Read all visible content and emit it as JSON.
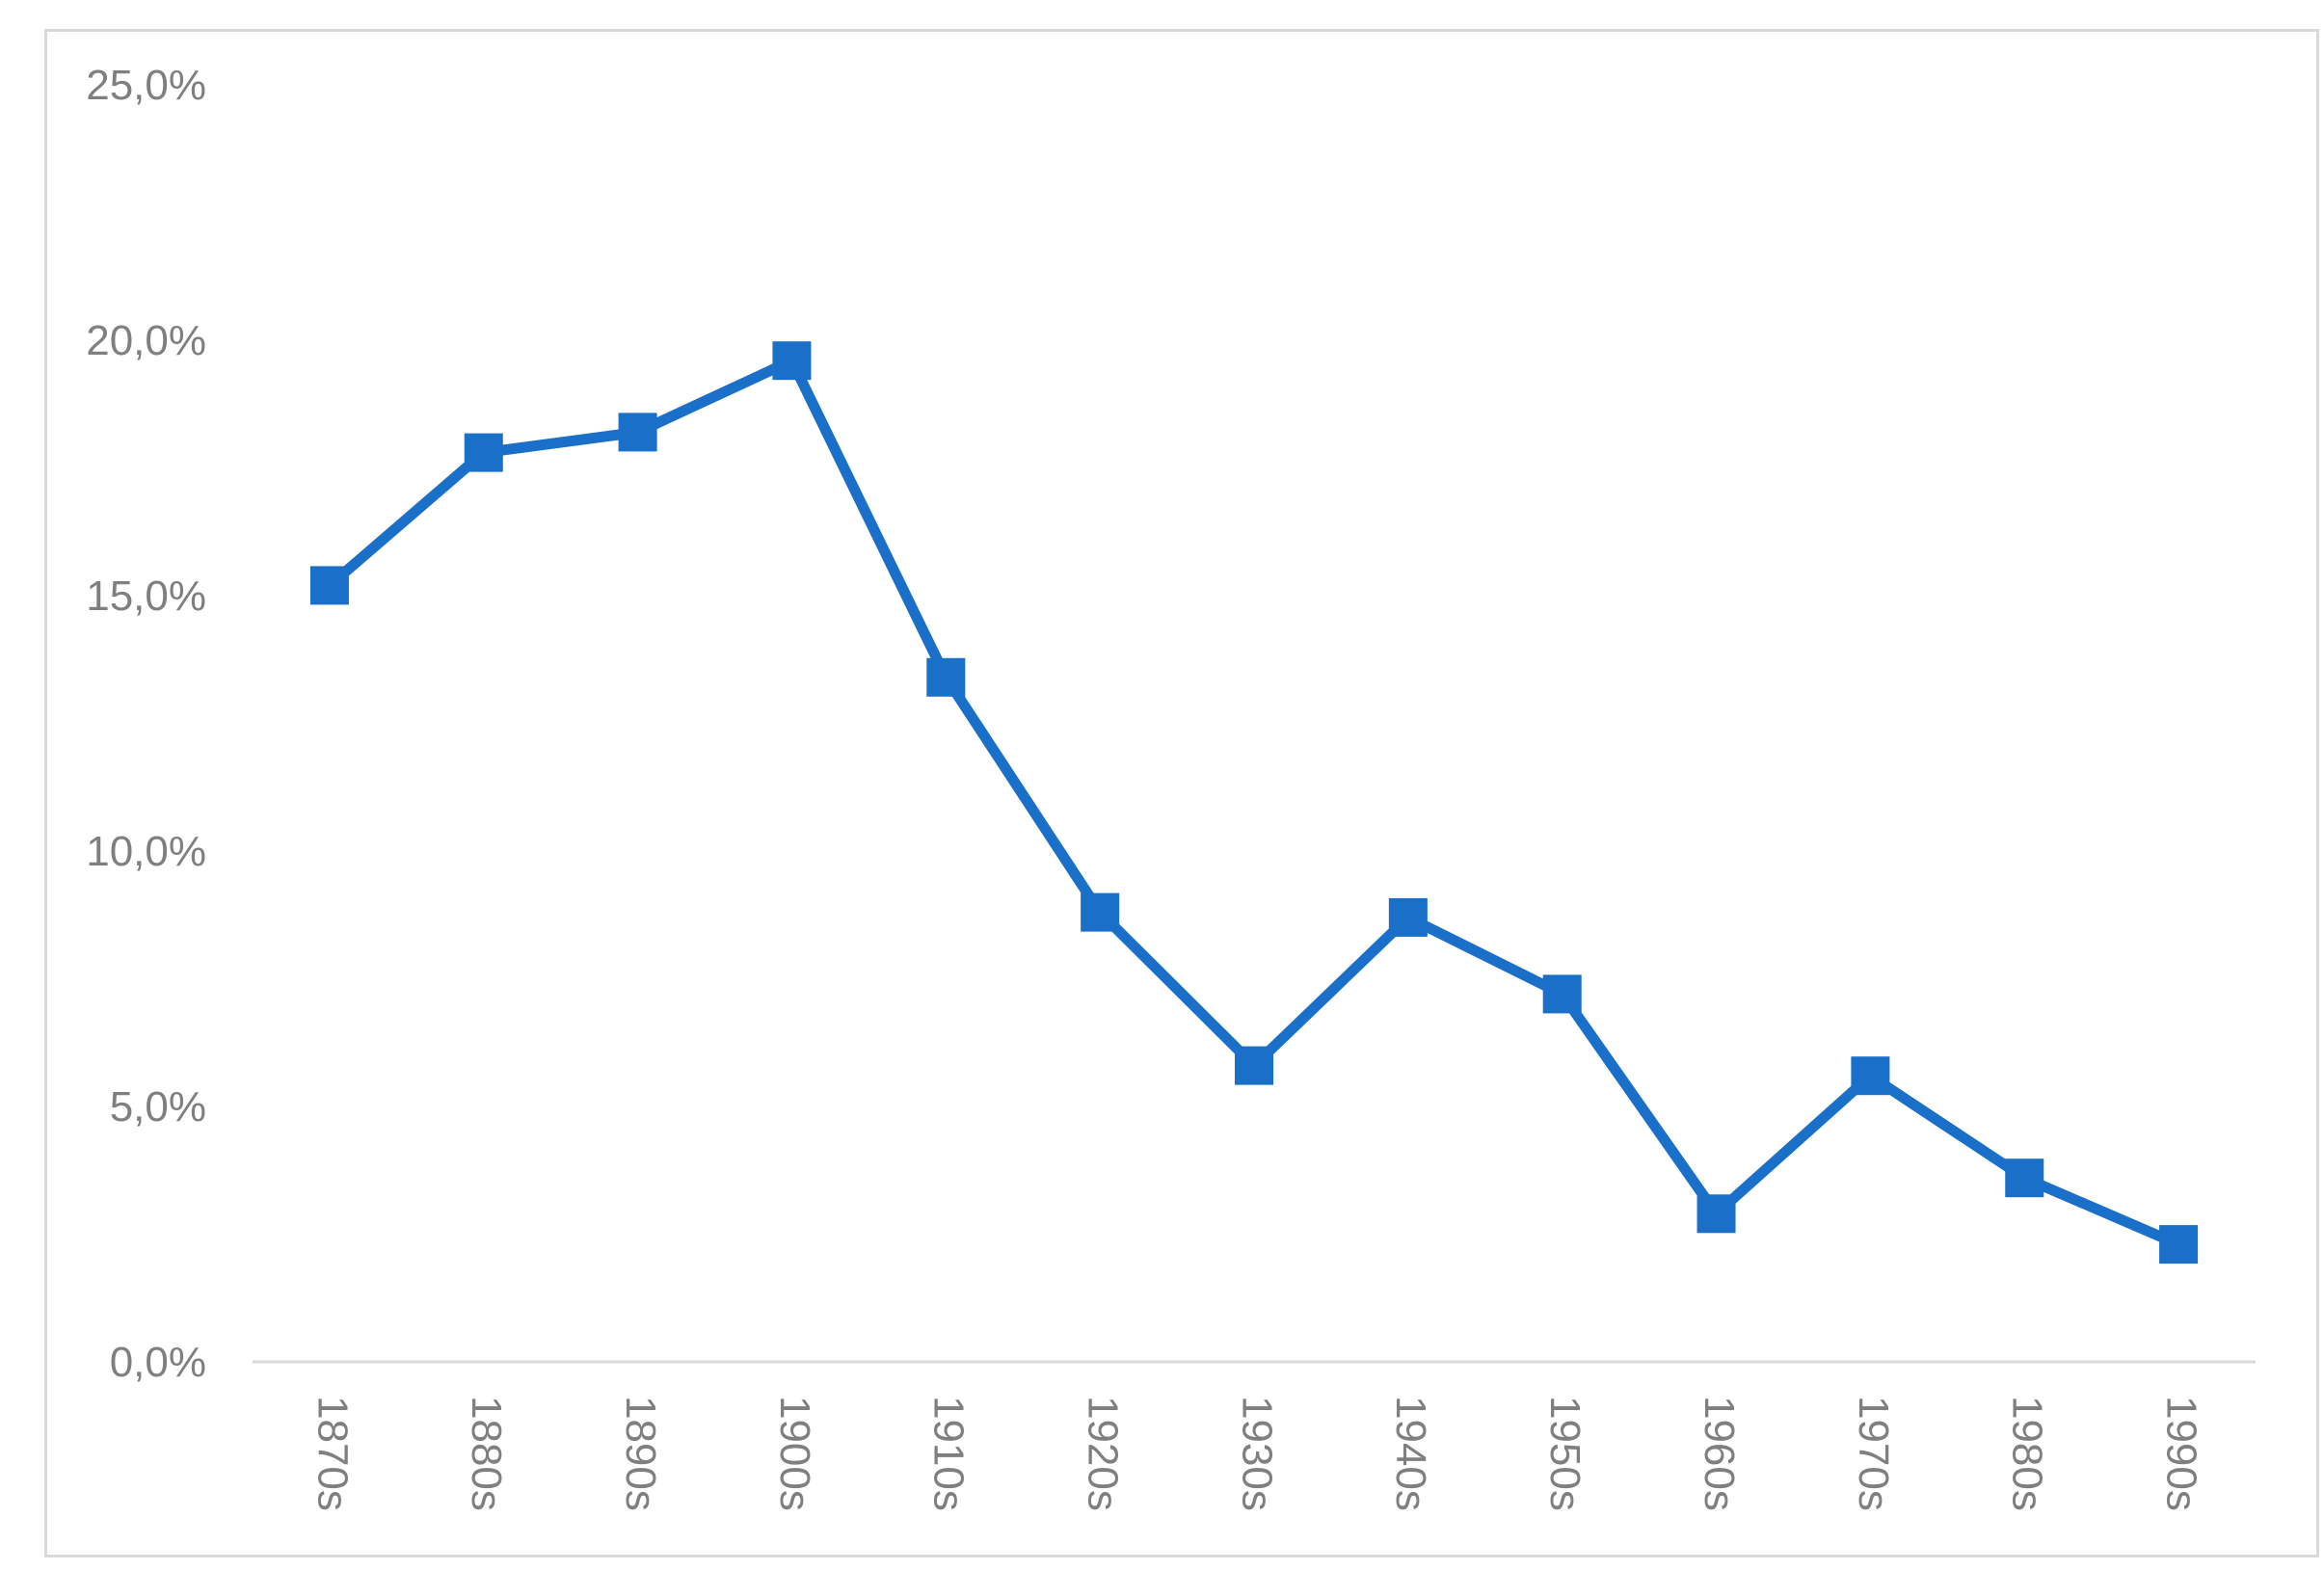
{
  "chart_data": {
    "type": "line",
    "title": "",
    "xlabel": "",
    "ylabel": "",
    "categories": [
      "1870s",
      "1880s",
      "1890s",
      "1900s",
      "1910s",
      "1920s",
      "1930s",
      "1940s",
      "1950s",
      "1960s",
      "1970s",
      "1980s",
      "1990s"
    ],
    "series": [
      {
        "values": [
          15.2,
          17.8,
          18.2,
          19.6,
          13.4,
          8.8,
          5.8,
          8.7,
          7.2,
          2.9,
          5.6,
          3.6,
          2.3
        ],
        "color": "#1a6fc9",
        "marker": "square"
      }
    ],
    "ylim": [
      0,
      25
    ],
    "yticks": [
      "0,0%",
      "5,0%",
      "10,0%",
      "15,0%",
      "20,0%",
      "25,0%"
    ],
    "grid": false,
    "legend": "none"
  }
}
